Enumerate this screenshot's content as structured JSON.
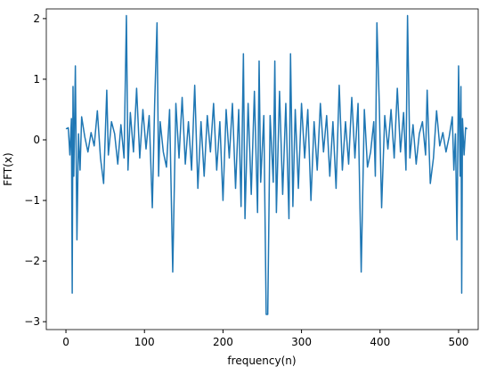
{
  "chart_data": {
    "type": "line",
    "xlabel": "frequency(n)",
    "ylabel": "FFT(x)",
    "x": [
      0,
      3,
      5,
      7,
      8,
      9,
      10,
      12,
      14,
      16,
      18,
      20,
      24,
      28,
      32,
      36,
      40,
      44,
      48,
      52,
      54,
      58,
      62,
      66,
      70,
      74,
      77,
      79,
      82,
      86,
      90,
      94,
      98,
      102,
      106,
      110,
      113,
      116,
      118,
      120,
      124,
      128,
      132,
      136,
      140,
      144,
      148,
      152,
      156,
      160,
      164,
      168,
      172,
      176,
      180,
      184,
      188,
      192,
      196,
      200,
      204,
      208,
      212,
      216,
      220,
      223,
      226,
      228,
      232,
      236,
      240,
      244,
      246,
      248,
      252,
      255,
      256,
      257,
      260,
      264,
      266,
      268,
      272,
      276,
      280,
      284,
      286,
      289,
      292,
      296,
      300,
      304,
      308,
      312,
      316,
      320,
      324,
      328,
      332,
      336,
      340,
      344,
      348,
      352,
      356,
      360,
      364,
      368,
      372,
      376,
      380,
      384,
      388,
      392,
      394,
      396,
      399,
      402,
      406,
      410,
      414,
      418,
      422,
      426,
      430,
      433,
      435,
      438,
      442,
      446,
      450,
      454,
      458,
      460,
      464,
      468,
      472,
      476,
      480,
      484,
      488,
      492,
      494,
      496,
      498,
      500,
      502,
      503,
      504,
      505,
      507,
      509,
      511
    ],
    "series": [
      {
        "name": "FFT",
        "color": "#1f77b4",
        "values": [
          0.18,
          0.2,
          -0.25,
          0.35,
          -2.53,
          0.88,
          -0.6,
          1.22,
          -1.65,
          0.1,
          -0.5,
          0.38,
          0.05,
          -0.2,
          0.12,
          -0.1,
          0.48,
          -0.3,
          -0.72,
          0.82,
          -0.25,
          0.3,
          0.1,
          -0.4,
          0.25,
          -0.3,
          2.05,
          -0.5,
          0.45,
          -0.2,
          0.85,
          -0.3,
          0.5,
          -0.15,
          0.4,
          -1.12,
          0.6,
          1.93,
          -0.6,
          0.3,
          -0.2,
          -0.45,
          0.5,
          -2.18,
          0.6,
          -0.3,
          0.7,
          -0.4,
          0.3,
          -0.5,
          0.9,
          -0.8,
          0.3,
          -0.6,
          0.4,
          -0.2,
          0.6,
          -0.5,
          0.3,
          -1.0,
          0.5,
          -0.3,
          0.6,
          -0.8,
          0.5,
          -1.1,
          1.42,
          -1.3,
          0.6,
          -0.9,
          0.8,
          -1.2,
          1.3,
          -0.7,
          0.4,
          -2.88,
          -2.88,
          -2.88,
          0.4,
          -0.7,
          1.3,
          -1.2,
          0.8,
          -0.9,
          0.6,
          -1.3,
          1.42,
          -1.1,
          0.5,
          -0.8,
          0.6,
          -0.3,
          0.5,
          -1.0,
          0.3,
          -0.5,
          0.6,
          -0.2,
          0.4,
          -0.6,
          0.3,
          -0.8,
          0.9,
          -0.5,
          0.3,
          -0.4,
          0.7,
          -0.3,
          0.6,
          -2.18,
          0.5,
          -0.45,
          -0.2,
          0.3,
          -0.6,
          1.93,
          0.6,
          -1.12,
          0.4,
          -0.15,
          0.5,
          -0.3,
          0.85,
          -0.2,
          0.45,
          -0.5,
          2.05,
          -0.3,
          0.25,
          -0.4,
          0.1,
          0.3,
          -0.25,
          0.82,
          -0.72,
          -0.3,
          0.48,
          -0.1,
          0.12,
          -0.2,
          0.05,
          0.38,
          -0.5,
          0.1,
          -1.65,
          1.22,
          -0.6,
          0.88,
          -2.53,
          0.35,
          -0.25,
          0.2,
          0.18
        ]
      }
    ],
    "xlim": [
      -25,
      525
    ],
    "ylim": [
      -3.13,
      2.16
    ],
    "xticks": [
      0,
      100,
      200,
      300,
      400,
      500
    ],
    "yticks": [
      {
        "value": -3,
        "label": "−3"
      },
      {
        "value": -2,
        "label": "−2"
      },
      {
        "value": -1,
        "label": "−1"
      },
      0,
      1,
      2
    ]
  }
}
